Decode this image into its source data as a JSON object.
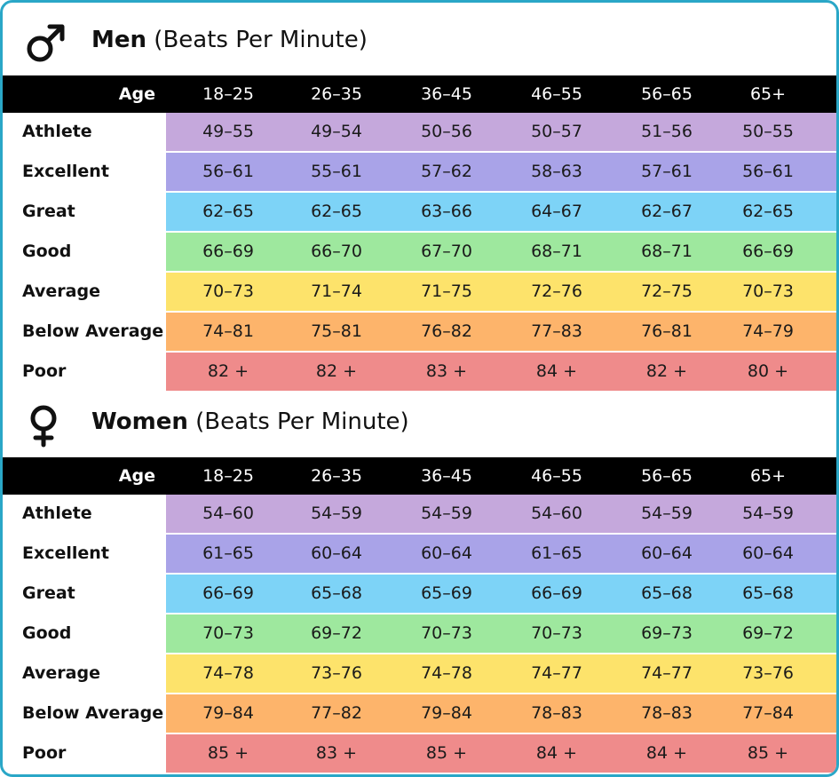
{
  "colors": {
    "athlete": "#c5a8dc",
    "excellent": "#a9a3e8",
    "great": "#7dd3f7",
    "good": "#9ee89e",
    "average": "#fde36b",
    "below_average": "#fdb46b",
    "poor": "#ef8b8b",
    "header_bg": "#000000",
    "frame_border": "#2aa7c7"
  },
  "age_label": "Age",
  "age_groups": [
    "18–25",
    "26–35",
    "36–45",
    "46–55",
    "56–65",
    "65+"
  ],
  "men": {
    "icon": "male-symbol-icon",
    "title_bold": "Men",
    "title_rest": "(Beats Per Minute)",
    "rows": [
      {
        "label": "Athlete",
        "key": "athlete",
        "values": [
          "49–55",
          "49–54",
          "50–56",
          "50–57",
          "51–56",
          "50–55"
        ]
      },
      {
        "label": "Excellent",
        "key": "excellent",
        "values": [
          "56–61",
          "55–61",
          "57–62",
          "58–63",
          "57–61",
          "56–61"
        ]
      },
      {
        "label": "Great",
        "key": "great",
        "values": [
          "62–65",
          "62–65",
          "63–66",
          "64–67",
          "62–67",
          "62–65"
        ]
      },
      {
        "label": "Good",
        "key": "good",
        "values": [
          "66–69",
          "66–70",
          "67–70",
          "68–71",
          "68–71",
          "66–69"
        ]
      },
      {
        "label": "Average",
        "key": "average",
        "values": [
          "70–73",
          "71–74",
          "71–75",
          "72–76",
          "72–75",
          "70–73"
        ]
      },
      {
        "label": "Below Average",
        "key": "below_average",
        "values": [
          "74–81",
          "75–81",
          "76–82",
          "77–83",
          "76–81",
          "74–79"
        ]
      },
      {
        "label": "Poor",
        "key": "poor",
        "values": [
          "82 +",
          "82 +",
          "83 +",
          "84 +",
          "82 +",
          "80 +"
        ]
      }
    ]
  },
  "women": {
    "icon": "female-symbol-icon",
    "title_bold": "Women",
    "title_rest": "(Beats Per Minute)",
    "rows": [
      {
        "label": "Athlete",
        "key": "athlete",
        "values": [
          "54–60",
          "54–59",
          "54–59",
          "54–60",
          "54–59",
          "54–59"
        ]
      },
      {
        "label": "Excellent",
        "key": "excellent",
        "values": [
          "61–65",
          "60–64",
          "60–64",
          "61–65",
          "60–64",
          "60–64"
        ]
      },
      {
        "label": "Great",
        "key": "great",
        "values": [
          "66–69",
          "65–68",
          "65–69",
          "66–69",
          "65–68",
          "65–68"
        ]
      },
      {
        "label": "Good",
        "key": "good",
        "values": [
          "70–73",
          "69–72",
          "70–73",
          "70–73",
          "69–73",
          "69–72"
        ]
      },
      {
        "label": "Average",
        "key": "average",
        "values": [
          "74–78",
          "73–76",
          "74–78",
          "74–77",
          "74–77",
          "73–76"
        ]
      },
      {
        "label": "Below Average",
        "key": "below_average",
        "values": [
          "79–84",
          "77–82",
          "79–84",
          "78–83",
          "78–83",
          "77–84"
        ]
      },
      {
        "label": "Poor",
        "key": "poor",
        "values": [
          "85 +",
          "83 +",
          "85 +",
          "84 +",
          "84 +",
          "85 +"
        ]
      }
    ]
  }
}
